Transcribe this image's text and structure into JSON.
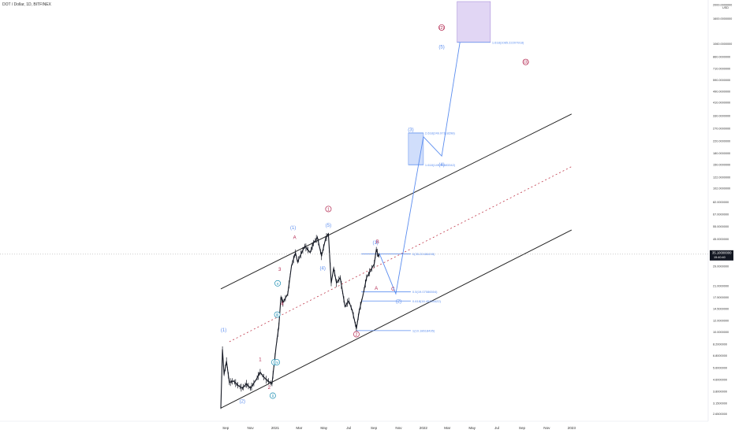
{
  "header": {
    "symbol": "DOT / Dollar, 1D, BITFINEX"
  },
  "axis": {
    "currency": "USD",
    "price_ticks": [
      "2000.0000000",
      "1600.0000000",
      "1060.0000000",
      "860.0000000",
      "710.0000000",
      "590.0000000",
      "490.0000000",
      "410.0000000",
      "330.0000000",
      "270.0000000",
      "220.0000000",
      "180.0000000",
      "150.0000000",
      "122.0000000",
      "102.0000000",
      "82.0000000",
      "67.0000000",
      "55.0000000",
      "45.0000000",
      "29.0000000",
      "21.0000000",
      "17.5000000",
      "14.5000000",
      "12.0000000",
      "10.0000000",
      "8.2000000",
      "6.8000000",
      "5.6000000",
      "4.6000000",
      "3.8000000",
      "3.1500000",
      "2.6500000"
    ],
    "time_ticks": [
      "Sep",
      "Nov",
      "2021",
      "Mar",
      "May",
      "Jul",
      "Sep",
      "Nov",
      "2022",
      "Mar",
      "May",
      "Jul",
      "Sep",
      "Nov",
      "2023"
    ],
    "current_price": "35.10000000",
    "countdown": "15:40:40"
  },
  "levels": [
    {
      "label": "1.618(1085.22207918)"
    },
    {
      "label": "2.618(249.97118298)"
    },
    {
      "label": "1.618(149.39683342)"
    },
    {
      "label": "0(35.22486498)"
    },
    {
      "label": "0.5(19.07086504)"
    },
    {
      "label": "0.618(16.45254422)"
    },
    {
      "label": "1(10.18618435)"
    }
  ],
  "wave_labels": [
    "(1)",
    "(2)",
    "1",
    "2",
    "3",
    "4",
    "5",
    "(3)",
    "(4)",
    "(5)",
    "1",
    "2",
    "3",
    "4",
    "A",
    "B",
    "C",
    "(1)",
    "(2)",
    "(3)",
    "(4)",
    "(5)",
    "i",
    "ii",
    "iii",
    "iv",
    "v"
  ],
  "colors": {
    "accent": "#5b8def",
    "wave_red": "#b3264f",
    "wave_teal": "#1e8fb3",
    "zone_blue": "#c8d9fb",
    "zone_purple": "#dccff3",
    "price_badge": "#131722"
  },
  "chart_data": {
    "type": "candlestick",
    "title": "DOT / Dollar, 1D, BITFINEX",
    "y_scale": "log",
    "ylim": [
      2.5,
      2100
    ],
    "x_range": [
      "2020-08-20",
      "2023-01-15"
    ],
    "last_price": 35.1,
    "price_path": [
      [
        "2020-08-20",
        2.9
      ],
      [
        "2020-08-24",
        7.5
      ],
      [
        "2020-08-28",
        5.0
      ],
      [
        "2020-09-03",
        6.2
      ],
      [
        "2020-09-10",
        4.4
      ],
      [
        "2020-09-20",
        4.5
      ],
      [
        "2020-10-01",
        4.2
      ],
      [
        "2020-10-12",
        4.0
      ],
      [
        "2020-10-22",
        4.3
      ],
      [
        "2020-11-01",
        4.0
      ],
      [
        "2020-11-15",
        4.6
      ],
      [
        "2020-11-25",
        5.2
      ],
      [
        "2020-12-01",
        4.9
      ],
      [
        "2020-12-10",
        4.6
      ],
      [
        "2020-12-24",
        4.3
      ],
      [
        "2021-01-03",
        7.8
      ],
      [
        "2021-01-10",
        11.0
      ],
      [
        "2021-01-15",
        17.5
      ],
      [
        "2021-01-20",
        16.0
      ],
      [
        "2021-02-01",
        18.5
      ],
      [
        "2021-02-10",
        29.0
      ],
      [
        "2021-02-20",
        36.0
      ],
      [
        "2021-02-25",
        31.0
      ],
      [
        "2021-03-05",
        35.0
      ],
      [
        "2021-03-15",
        40.0
      ],
      [
        "2021-03-28",
        36.0
      ],
      [
        "2021-04-05",
        42.0
      ],
      [
        "2021-04-15",
        46.0
      ],
      [
        "2021-04-25",
        34.0
      ],
      [
        "2021-05-05",
        45.0
      ],
      [
        "2021-05-12",
        49.0
      ],
      [
        "2021-05-19",
        22.0
      ],
      [
        "2021-05-25",
        28.0
      ],
      [
        "2021-06-01",
        22.0
      ],
      [
        "2021-06-10",
        24.0
      ],
      [
        "2021-06-22",
        15.0
      ],
      [
        "2021-07-01",
        16.5
      ],
      [
        "2021-07-10",
        14.0
      ],
      [
        "2021-07-20",
        10.5
      ],
      [
        "2021-07-27",
        14.0
      ],
      [
        "2021-08-05",
        18.0
      ],
      [
        "2021-08-14",
        24.0
      ],
      [
        "2021-08-24",
        27.0
      ],
      [
        "2021-09-02",
        30.0
      ],
      [
        "2021-09-07",
        38.0
      ],
      [
        "2021-09-12",
        34.0
      ],
      [
        "2021-09-15",
        35.1
      ]
    ],
    "projection": [
      [
        "2021-09-15",
        35.2
      ],
      [
        "2021-10-25",
        18.5
      ],
      [
        "2022-01-01",
        235.0
      ],
      [
        "2022-02-15",
        172.0
      ],
      [
        "2022-04-01",
        1085.0
      ]
    ],
    "channel": {
      "upper": [
        [
          "2020-08-20",
          20.0
        ],
        [
          "2023-01-01",
          340.0
        ]
      ],
      "mid": [
        [
          "2020-09-10",
          8.5
        ],
        [
          "2023-01-01",
          145.0
        ]
      ],
      "lower": [
        [
          "2020-08-20",
          2.9
        ],
        [
          "2023-01-01",
          52.0
        ]
      ]
    },
    "fib_levels": [
      1085.22207918,
      249.97118298,
      149.39683342,
      35.22486498,
      19.07086504,
      16.45254422,
      10.18618435
    ],
    "zones": [
      {
        "from": "2021-11-25",
        "to": "2022-01-01",
        "low": 149.4,
        "high": 250.0
      },
      {
        "from": "2022-03-25",
        "to": "2022-06-15",
        "low": 1085.0,
        "high": 2100.0
      }
    ]
  }
}
